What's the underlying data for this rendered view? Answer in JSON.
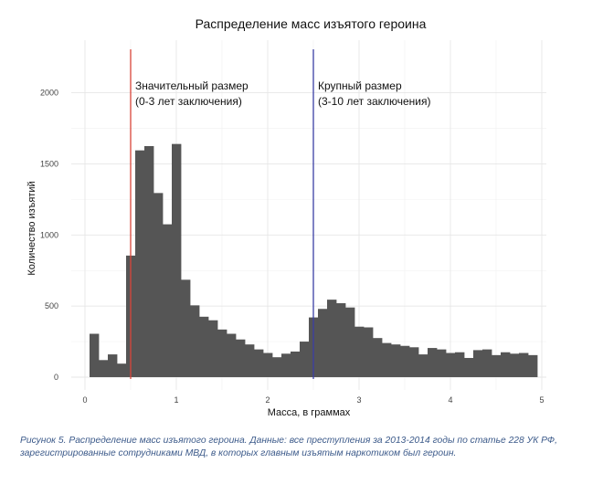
{
  "chart_data": {
    "type": "bar",
    "title": "Распределение масс изъятого героина",
    "xlabel": "Масса, в граммах",
    "ylabel": "Количество изъятий",
    "xlim": [
      -0.15,
      5.05
    ],
    "ylim": [
      -90,
      2370
    ],
    "x_ticks": [
      0,
      1,
      2,
      3,
      4,
      5
    ],
    "y_ticks": [
      0,
      500,
      1000,
      1500,
      2000
    ],
    "grid": true,
    "bin_width": 0.1,
    "bins_start": [
      0.05,
      0.15,
      0.25,
      0.35,
      0.45,
      0.55,
      0.65,
      0.75,
      0.85,
      0.95,
      1.05,
      1.15,
      1.25,
      1.35,
      1.45,
      1.55,
      1.65,
      1.75,
      1.85,
      1.95,
      2.05,
      2.15,
      2.25,
      2.35,
      2.45,
      2.55,
      2.65,
      2.75,
      2.85,
      2.95,
      3.05,
      3.15,
      3.25,
      3.35,
      3.45,
      3.55,
      3.65,
      3.75,
      3.85,
      3.95,
      4.05,
      4.15,
      4.25,
      4.35,
      4.45,
      4.55,
      4.65,
      4.75,
      4.85
    ],
    "values": [
      305,
      120,
      160,
      95,
      855,
      1595,
      1625,
      1295,
      1075,
      1640,
      685,
      505,
      425,
      400,
      335,
      305,
      265,
      230,
      195,
      170,
      140,
      165,
      180,
      250,
      420,
      480,
      545,
      520,
      490,
      355,
      350,
      275,
      240,
      230,
      220,
      210,
      160,
      205,
      195,
      170,
      175,
      135,
      190,
      195,
      155,
      175,
      165,
      170,
      155
    ],
    "bar_color": "#555555",
    "vlines": [
      {
        "x": 0.5,
        "color": "#d9453a",
        "label_line1": "Значительный размер",
        "label_line2": "(0-3 лет заключения)"
      },
      {
        "x": 2.5,
        "color": "#3b3fa5",
        "label_line1": "Крупный размер",
        "label_line2": "(3-10 лет заключения)"
      }
    ]
  },
  "caption": "Рисунок 5. Распределение масс изъятого героина. Данные: все преступления за 2013-2014 годы по статье 228 УК РФ, зарегистрированные сотрудниками МВД, в которых главным изъятым наркотиком был героин."
}
